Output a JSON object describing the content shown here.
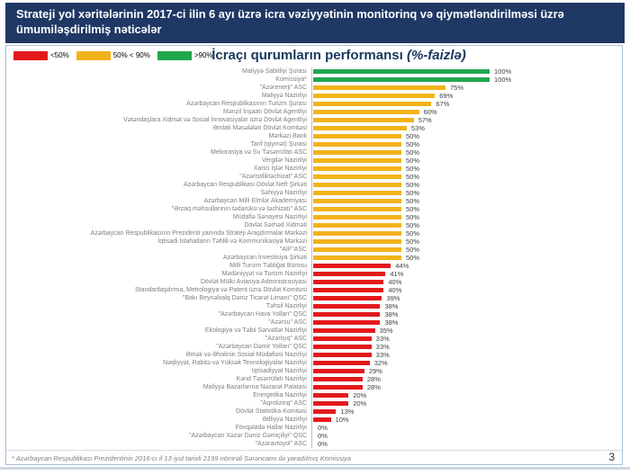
{
  "slide": {
    "header_title": "Strateji yol xəritələrinin 2017-ci ilin 6 ayı üzrə icra vəziyyətinin monitorinq və qiymətləndirilməsi üzrə ümumiləşdirilmiş nəticələr",
    "footnote": "* Azərbaycan Respublikası Prezidentinin 2016-cı il 13 iyul tarixli 2199 nömrəli Sərəncamı ilə yaradılmış Komissiya",
    "page_number": "3"
  },
  "legend": {
    "items": [
      {
        "label": "<50%",
        "color": "#E3191C"
      },
      {
        "label": "50% < 90%",
        "color": "#F2B31A"
      },
      {
        "label": ">90%",
        "color": "#21A74E"
      }
    ]
  },
  "chart_data": {
    "type": "bar",
    "orientation": "horizontal",
    "title_main": "İcraçı qurumların performansı",
    "title_suffix": "(%-faizlə)",
    "unit": "%",
    "xlim": [
      0,
      100
    ],
    "grid": false,
    "legend_position": "top-left",
    "color_thresholds": {
      "green_above": 90,
      "yellow_from": 50
    },
    "colors": {
      "red": "#E3191C",
      "yellow": "#F2B31A",
      "green": "#21A74E"
    },
    "categories": [
      "Maliyyə Sabitliyi Şurası",
      "Komissiya*",
      "\"Azərenerji\" ASC",
      "Maliyyə Nazirliyi",
      "Azərbaycan Respublikasının Turizm Şurası",
      "Mənzil İnşaatı Dövlət Agentliyi",
      "Vətəndaşlara Xidmət və Sosial İnnovasiyalar üzrə Dövlət Agentliyi",
      "Əmlak Məsələləri Dövlət Komitəsi",
      "Mərkəzi Bank",
      "Tarif (qiymət) Şurası",
      "Meliorasiya və Su Təsərrüfatı ASC",
      "Vergilər Nazirliyi",
      "Xarici İşlər Nazirliyi",
      "\"Azəristiliktəchizat\" ASC",
      "Azərbaycan Respublikası Dövlət Neft Şirkəti",
      "Səhiyyə Nazirliyi",
      "Azərbaycan Milli Elmlər Akademiyası",
      "\"Ərzaq məhsullarının tədarükü və təchizatı\" ASC",
      "Müdafiə Sənayesi Nazirliyi",
      "Dövlət Sərhəd Xidməti",
      "Azərbaycan Respublikasının Prezidenti yanında Strateji Araşdırmalar Mərkəzi",
      "İqtisadi İslahatların Təhlili və Kommunikasiya Mərkəzi",
      "\"AİF\"ASC",
      "Azərbaycan İnvestisiya Şirkəti",
      "Milli Turizm Təbliğat Bürosu",
      "Mədəniyyət və Turizm Nazirliyi",
      "Dövlət Mülki Aviasiya Administrasiyası",
      "Standartlaşdırma, Metrologiya və Patent üzrə Dövlət Komitəsi",
      "\"Bakı Beynəlxalq Dəniz Ticarət Limanı\" QSC",
      "Təhsil Nazirliyi",
      "\"Azərbaycan Hava Yolları\" QSC",
      "\"Azərsu\" ASC",
      "Ekologiya və Təbii Sərvətlər Nazirliyi",
      "\"Azərişıq\" ASC",
      "\"Azərbaycan Dəmir Yolları\" QSC",
      "Əmək və Əhalinin Sosial Müdafiəsi Nazirliyi",
      "Nəqliyyat, Rabitə və Yüksək Texnologiyalar Nazirliyi",
      "İqtisadiyyat Nazirliyi",
      "Kənd Təsərrüfatı Nazirliyi",
      "Maliyyə Bazarlarına Nəzarət Palatası",
      "Energetika Nazirliyi",
      "\"Aqrolizinq\" ASC",
      "Dövlət Statistika Komitəsi",
      "Ədliyyə Nazirliyi",
      "Fövqəladə Hallar Nazirliyi",
      "\"Azərbaycan Xəzər Dəniz Gəmiçiliyi\" QSC",
      "\"Azəravtoyol\" ASC"
    ],
    "values": [
      100,
      100,
      75,
      69,
      67,
      60,
      57,
      53,
      50,
      50,
      50,
      50,
      50,
      50,
      50,
      50,
      50,
      50,
      50,
      50,
      50,
      50,
      50,
      50,
      44,
      41,
      40,
      40,
      39,
      38,
      38,
      38,
      35,
      33,
      33,
      33,
      32,
      29,
      28,
      28,
      20,
      20,
      13,
      10,
      0,
      0,
      0
    ]
  }
}
